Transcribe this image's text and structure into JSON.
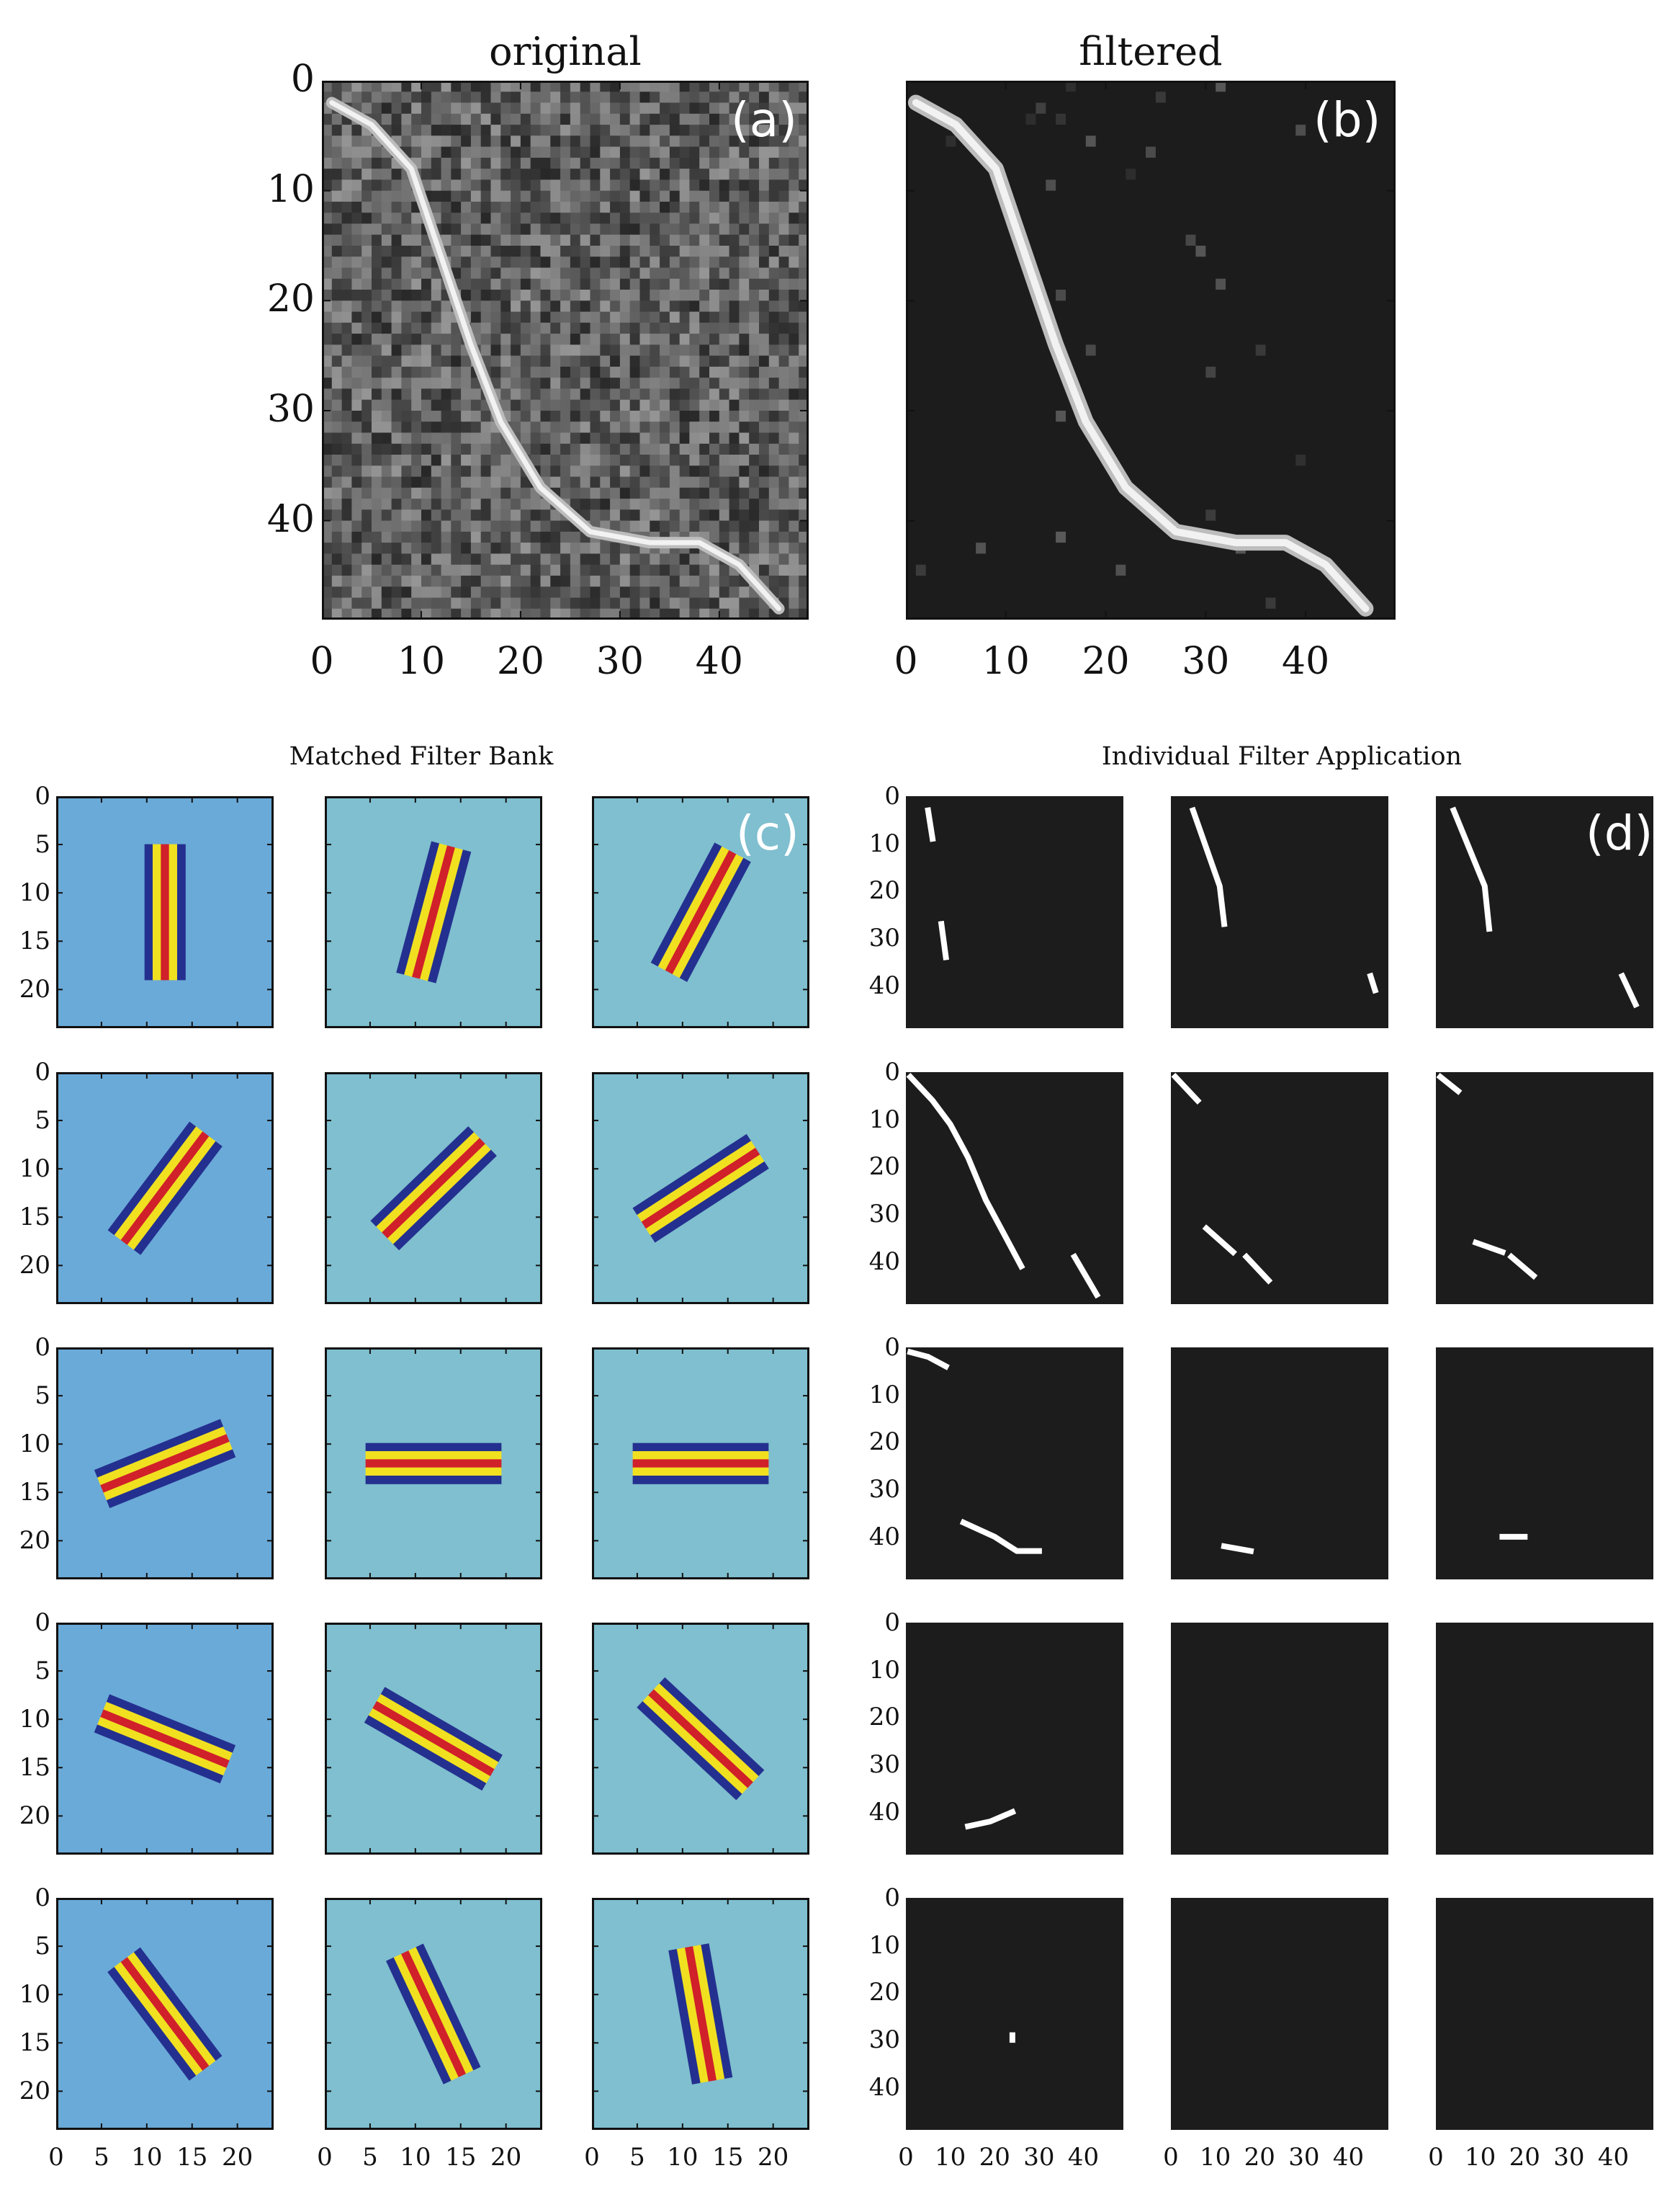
{
  "figure": {
    "panel_a": {
      "title": "original",
      "letter": "(a)"
    },
    "panel_b": {
      "title": "filtered",
      "letter": "(b)"
    },
    "panel_c": {
      "title": "Matched Filter Bank",
      "letter": "(c)"
    },
    "panel_d": {
      "title": "Individual Filter Application",
      "letter": "(d)"
    }
  },
  "ticks": {
    "top_y": [
      "0",
      "10",
      "20",
      "30",
      "40"
    ],
    "top_x": [
      "0",
      "10",
      "20",
      "30",
      "40"
    ],
    "filter_y": [
      "0",
      "5",
      "10",
      "15",
      "20"
    ],
    "filter_x": [
      "0",
      "5",
      "10",
      "15",
      "20"
    ],
    "app_y": [
      "0",
      "10",
      "20",
      "30",
      "40"
    ],
    "app_x": [
      "0",
      "10",
      "20",
      "30",
      "40"
    ]
  },
  "colors": {
    "dark_bg": "#1c1c1c",
    "filter_bg_a": "#6aaad8",
    "filter_bg_b": "#7fbfcf",
    "stripe_blue": "#24308f",
    "stripe_yellow": "#f0e020",
    "stripe_red": "#d0202a",
    "white": "#ffffff"
  },
  "chart_data": [
    {
      "type": "heatmap",
      "title": "original",
      "xlim": [
        0,
        49
      ],
      "ylim": [
        49,
        0
      ],
      "xticks": [
        0,
        10,
        20,
        30,
        40
      ],
      "yticks": [
        0,
        10,
        20,
        30,
        40
      ],
      "colormap": "gray",
      "ridge_curve_x_y": [
        [
          1,
          2
        ],
        [
          5,
          4
        ],
        [
          9,
          8
        ],
        [
          12,
          16
        ],
        [
          15,
          24
        ],
        [
          18,
          31
        ],
        [
          22,
          37
        ],
        [
          27,
          41
        ],
        [
          33,
          42
        ],
        [
          38,
          42
        ],
        [
          42,
          44
        ],
        [
          46,
          48
        ]
      ]
    },
    {
      "type": "heatmap",
      "title": "filtered",
      "xlim": [
        0,
        49
      ],
      "ylim": [
        49,
        0
      ],
      "xticks": [
        0,
        10,
        20,
        30,
        40
      ],
      "yticks": [
        0,
        10,
        20,
        30,
        40
      ],
      "colormap": "gray",
      "ridge_curve_x_y": [
        [
          1,
          2
        ],
        [
          5,
          4
        ],
        [
          9,
          8
        ],
        [
          12,
          16
        ],
        [
          15,
          24
        ],
        [
          18,
          31
        ],
        [
          22,
          37
        ],
        [
          27,
          41
        ],
        [
          33,
          42
        ],
        [
          38,
          42
        ],
        [
          42,
          44
        ],
        [
          46,
          48
        ]
      ]
    },
    {
      "type": "heatmap",
      "title": "Matched Filter Bank",
      "grid": [
        5,
        3
      ],
      "xlim": [
        0,
        24
      ],
      "ylim": [
        24,
        0
      ],
      "xticks": [
        0,
        5,
        10,
        15,
        20
      ],
      "yticks": [
        0,
        5,
        10,
        15,
        20
      ],
      "center": [
        12,
        12
      ],
      "filter_length": 15,
      "stripe_profile": [
        "blue",
        "yellow",
        "red",
        "yellow",
        "blue"
      ],
      "orientations_deg_from_vertical": [
        0,
        15,
        28,
        37,
        46,
        57,
        68,
        90,
        90,
        112,
        120,
        133,
        143,
        155,
        170
      ]
    },
    {
      "type": "heatmap",
      "title": "Individual Filter Application",
      "grid": [
        5,
        3
      ],
      "xlim": [
        0,
        49
      ],
      "ylim": [
        49,
        0
      ],
      "xticks": [
        0,
        10,
        20,
        30,
        40
      ],
      "yticks": [
        0,
        10,
        20,
        30,
        40
      ],
      "colormap": "binary",
      "segments_x_y": [
        [
          [
            [
              5,
              3
            ],
            [
              6,
              9
            ]
          ],
          [
            [
              8,
              27
            ],
            [
              9,
              34
            ]
          ]
        ],
        [
          [
            [
              5,
              3
            ],
            [
              11,
              19
            ],
            [
              12,
              27
            ]
          ],
          [
            [
              45,
              38
            ],
            [
              46,
              41
            ]
          ]
        ],
        [
          [
            [
              4,
              3
            ],
            [
              11,
              19
            ],
            [
              12,
              28
            ]
          ],
          [
            [
              42,
              38
            ],
            [
              45,
              44
            ]
          ]
        ],
        [
          [
            [
              1,
              1
            ],
            [
              6,
              6
            ],
            [
              10,
              11
            ],
            [
              14,
              18
            ],
            [
              18,
              27
            ],
            [
              22,
              34
            ],
            [
              26,
              41
            ]
          ],
          [
            [
              38,
              39
            ],
            [
              43,
              47
            ]
          ]
        ],
        [
          [
            [
              1,
              1
            ],
            [
              6,
              6
            ]
          ],
          [
            [
              8,
              33
            ],
            [
              14,
              38
            ]
          ],
          [
            [
              17,
              39
            ],
            [
              22,
              44
            ]
          ]
        ],
        [
          [
            [
              1,
              1
            ],
            [
              5,
              4
            ]
          ],
          [
            [
              9,
              36
            ],
            [
              15,
              38
            ]
          ],
          [
            [
              17,
              39
            ],
            [
              22,
              43
            ]
          ]
        ],
        [
          [
            [
              1,
              1
            ],
            [
              5,
              2
            ],
            [
              9,
              4
            ]
          ],
          [
            [
              13,
              37
            ],
            [
              20,
              40
            ],
            [
              25,
              43
            ],
            [
              30,
              43
            ]
          ]
        ],
        [
          [
            [
              12,
              42
            ],
            [
              18,
              43
            ]
          ]
        ],
        [
          [
            [
              15,
              40
            ],
            [
              20,
              40
            ]
          ]
        ],
        [
          [
            [
              14,
              43
            ],
            [
              19,
              42
            ],
            [
              24,
              40
            ]
          ]
        ],
        [],
        [],
        [
          [
            [
              24,
              29
            ],
            [
              24,
              30
            ]
          ]
        ],
        [],
        []
      ]
    }
  ]
}
